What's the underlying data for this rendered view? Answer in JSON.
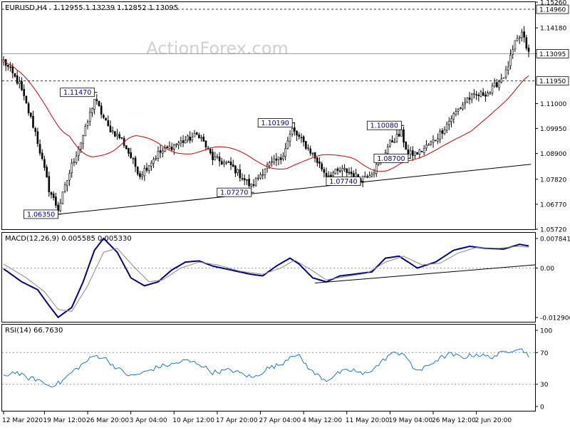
{
  "chart_data": [
    {
      "type": "candlestick",
      "title": "EURUSD,H4",
      "ohlc_header": "1.12955 1.13239 1.12852 1.13095",
      "watermark": "ActionForex.com",
      "ylim": [
        1.0572,
        1.1526
      ],
      "price_ticks": [
        "1.15260",
        "1.14180",
        "1.13095",
        "1.11000",
        "1.09950",
        "1.08900",
        "1.07820",
        "1.06770",
        "1.05720"
      ],
      "hlines": [
        {
          "value": 1.1496,
          "label": "1.14960",
          "style": "dashed",
          "boxed": true
        },
        {
          "value": 1.13095,
          "label": "1.13095",
          "style": "solid",
          "boxed": true
        },
        {
          "value": 1.1195,
          "label": "1.11950",
          "style": "dashed",
          "boxed": true
        }
      ],
      "annotations": [
        {
          "label": "1.11470",
          "index": 40,
          "value": 1.1147
        },
        {
          "label": "1.06350",
          "index": 24,
          "value": 1.0635
        },
        {
          "label": "1.10190",
          "index": 127,
          "value": 1.1019
        },
        {
          "label": "1.07270",
          "index": 109,
          "value": 1.0727
        },
        {
          "label": "1.07740",
          "index": 157,
          "value": 1.0774
        },
        {
          "label": "1.10080",
          "index": 175,
          "value": 1.1008
        },
        {
          "label": "1.08700",
          "index": 178,
          "value": 1.087
        }
      ],
      "trendline": {
        "from": {
          "index": 24,
          "value": 1.0635
        },
        "to": {
          "index": 232,
          "value": 1.0845
        }
      },
      "moving_average": {
        "color": "#cc0000"
      },
      "x_ticks": [
        {
          "index": 0,
          "label": "12 Mar 2020"
        },
        {
          "index": 18,
          "label": "19 Mar 12:00"
        },
        {
          "index": 37,
          "label": "26 Mar 20:00"
        },
        {
          "index": 56,
          "label": "3 Apr 04:00"
        },
        {
          "index": 75,
          "label": "10 Apr 12:00"
        },
        {
          "index": 94,
          "label": "17 Apr 20:00"
        },
        {
          "index": 113,
          "label": "27 Apr 04:00"
        },
        {
          "index": 132,
          "label": "4 May 12:00"
        },
        {
          "index": 151,
          "label": "11 May 20:00"
        },
        {
          "index": 170,
          "label": "19 May 04:00"
        },
        {
          "index": 189,
          "label": "26 May 12:00"
        },
        {
          "index": 208,
          "label": "2 Jun 20:00"
        }
      ],
      "candles": {
        "count": 232,
        "close_waypoints": [
          {
            "index": 0,
            "value": 1.128
          },
          {
            "index": 7,
            "value": 1.118
          },
          {
            "index": 14,
            "value": 1.098
          },
          {
            "index": 20,
            "value": 1.074
          },
          {
            "index": 24,
            "value": 1.0655
          },
          {
            "index": 30,
            "value": 1.084
          },
          {
            "index": 36,
            "value": 1.099
          },
          {
            "index": 40,
            "value": 1.112
          },
          {
            "index": 46,
            "value": 1.1
          },
          {
            "index": 52,
            "value": 1.095
          },
          {
            "index": 60,
            "value": 1.08
          },
          {
            "index": 68,
            "value": 1.089
          },
          {
            "index": 76,
            "value": 1.093
          },
          {
            "index": 86,
            "value": 1.097
          },
          {
            "index": 92,
            "value": 1.087
          },
          {
            "index": 100,
            "value": 1.084
          },
          {
            "index": 109,
            "value": 1.075
          },
          {
            "index": 115,
            "value": 1.083
          },
          {
            "index": 122,
            "value": 1.087
          },
          {
            "index": 127,
            "value": 1.099
          },
          {
            "index": 135,
            "value": 1.09
          },
          {
            "index": 142,
            "value": 1.08
          },
          {
            "index": 150,
            "value": 1.082
          },
          {
            "index": 157,
            "value": 1.0785
          },
          {
            "index": 163,
            "value": 1.082
          },
          {
            "index": 170,
            "value": 1.0935
          },
          {
            "index": 175,
            "value": 1.0975
          },
          {
            "index": 178,
            "value": 1.0885
          },
          {
            "index": 183,
            "value": 1.0895
          },
          {
            "index": 190,
            "value": 1.095
          },
          {
            "index": 197,
            "value": 1.104
          },
          {
            "index": 204,
            "value": 1.112
          },
          {
            "index": 214,
            "value": 1.115
          },
          {
            "index": 221,
            "value": 1.123
          },
          {
            "index": 225,
            "value": 1.135
          },
          {
            "index": 228,
            "value": 1.1395
          },
          {
            "index": 231,
            "value": 1.131
          }
        ]
      }
    },
    {
      "type": "line",
      "title": "MACD(12,26,9) 0.005585 0.005330",
      "ylim": [
        -0.012906,
        0.007841
      ],
      "ticks": [
        "0.007841",
        "0.00",
        "-0.012906"
      ],
      "series": [
        {
          "role": "macd",
          "color": "#000080",
          "waypoints": [
            {
              "index": 0,
              "value": -0.0002
            },
            {
              "index": 8,
              "value": -0.0035
            },
            {
              "index": 15,
              "value": -0.0055
            },
            {
              "index": 20,
              "value": -0.0095
            },
            {
              "index": 24,
              "value": -0.0125
            },
            {
              "index": 30,
              "value": -0.01
            },
            {
              "index": 35,
              "value": -0.0035
            },
            {
              "index": 40,
              "value": 0.0045
            },
            {
              "index": 44,
              "value": 0.0075
            },
            {
              "index": 50,
              "value": 0.004
            },
            {
              "index": 56,
              "value": -0.0025
            },
            {
              "index": 62,
              "value": -0.0045
            },
            {
              "index": 68,
              "value": -0.0035
            },
            {
              "index": 74,
              "value": -0.0005
            },
            {
              "index": 80,
              "value": 0.0015
            },
            {
              "index": 86,
              "value": 0.0018
            },
            {
              "index": 92,
              "value": 0.0005
            },
            {
              "index": 100,
              "value": -0.0005
            },
            {
              "index": 108,
              "value": -0.0015
            },
            {
              "index": 114,
              "value": -0.002
            },
            {
              "index": 120,
              "value": 0.0005
            },
            {
              "index": 126,
              "value": 0.0025
            },
            {
              "index": 130,
              "value": 0.001
            },
            {
              "index": 136,
              "value": -0.0025
            },
            {
              "index": 142,
              "value": -0.0035
            },
            {
              "index": 148,
              "value": -0.002
            },
            {
              "index": 155,
              "value": -0.0015
            },
            {
              "index": 162,
              "value": -0.001
            },
            {
              "index": 168,
              "value": 0.0025
            },
            {
              "index": 174,
              "value": 0.003
            },
            {
              "index": 178,
              "value": 0.0015
            },
            {
              "index": 182,
              "value": 0
            },
            {
              "index": 190,
              "value": 0.0015
            },
            {
              "index": 198,
              "value": 0.0045
            },
            {
              "index": 205,
              "value": 0.0055
            },
            {
              "index": 212,
              "value": 0.005
            },
            {
              "index": 220,
              "value": 0.0048
            },
            {
              "index": 227,
              "value": 0.006
            },
            {
              "index": 231,
              "value": 0.0056
            }
          ]
        },
        {
          "role": "signal",
          "color": "#888888",
          "waypoints": [
            {
              "index": 0,
              "value": 0.001
            },
            {
              "index": 10,
              "value": -0.0025
            },
            {
              "index": 18,
              "value": -0.006
            },
            {
              "index": 24,
              "value": -0.0105
            },
            {
              "index": 30,
              "value": -0.011
            },
            {
              "index": 37,
              "value": -0.0045
            },
            {
              "index": 44,
              "value": 0.004
            },
            {
              "index": 50,
              "value": 0.005
            },
            {
              "index": 57,
              "value": 0.0005
            },
            {
              "index": 64,
              "value": -0.0035
            },
            {
              "index": 70,
              "value": -0.003
            },
            {
              "index": 78,
              "value": 0
            },
            {
              "index": 86,
              "value": 0.0015
            },
            {
              "index": 94,
              "value": 0.0008
            },
            {
              "index": 104,
              "value": -0.0008
            },
            {
              "index": 114,
              "value": -0.0016
            },
            {
              "index": 122,
              "value": 0
            },
            {
              "index": 128,
              "value": 0.002
            },
            {
              "index": 134,
              "value": 0
            },
            {
              "index": 142,
              "value": -0.003
            },
            {
              "index": 150,
              "value": -0.0022
            },
            {
              "index": 160,
              "value": -0.0013
            },
            {
              "index": 168,
              "value": 0.0015
            },
            {
              "index": 176,
              "value": 0.003
            },
            {
              "index": 184,
              "value": 0.0008
            },
            {
              "index": 192,
              "value": 0.0012
            },
            {
              "index": 200,
              "value": 0.0038
            },
            {
              "index": 208,
              "value": 0.0052
            },
            {
              "index": 218,
              "value": 0.005
            },
            {
              "index": 226,
              "value": 0.0055
            },
            {
              "index": 231,
              "value": 0.0053
            }
          ]
        }
      ],
      "trendline": {
        "from": {
          "index": 137,
          "value": -0.0038
        },
        "to": {
          "index": 232,
          "value": 0.0008
        }
      }
    },
    {
      "type": "line",
      "title": "RSI(14) 66.7630",
      "ylim": [
        0,
        100
      ],
      "ticks": [
        "100",
        "70",
        "30",
        "0"
      ],
      "levels": [
        70,
        30
      ],
      "series": [
        {
          "role": "rsi",
          "color": "#1e78c8",
          "waypoints": [
            {
              "index": 0,
              "value": 40
            },
            {
              "index": 5,
              "value": 46
            },
            {
              "index": 10,
              "value": 38
            },
            {
              "index": 15,
              "value": 36
            },
            {
              "index": 20,
              "value": 28
            },
            {
              "index": 25,
              "value": 32
            },
            {
              "index": 30,
              "value": 45
            },
            {
              "index": 36,
              "value": 58
            },
            {
              "index": 40,
              "value": 66
            },
            {
              "index": 44,
              "value": 64
            },
            {
              "index": 50,
              "value": 50
            },
            {
              "index": 56,
              "value": 40
            },
            {
              "index": 62,
              "value": 45
            },
            {
              "index": 68,
              "value": 52
            },
            {
              "index": 74,
              "value": 55
            },
            {
              "index": 80,
              "value": 60
            },
            {
              "index": 86,
              "value": 56
            },
            {
              "index": 92,
              "value": 45
            },
            {
              "index": 100,
              "value": 48
            },
            {
              "index": 106,
              "value": 42
            },
            {
              "index": 110,
              "value": 38
            },
            {
              "index": 116,
              "value": 50
            },
            {
              "index": 122,
              "value": 55
            },
            {
              "index": 127,
              "value": 68
            },
            {
              "index": 130,
              "value": 65
            },
            {
              "index": 136,
              "value": 45
            },
            {
              "index": 142,
              "value": 35
            },
            {
              "index": 148,
              "value": 45
            },
            {
              "index": 154,
              "value": 48
            },
            {
              "index": 158,
              "value": 42
            },
            {
              "index": 164,
              "value": 52
            },
            {
              "index": 170,
              "value": 68
            },
            {
              "index": 176,
              "value": 70
            },
            {
              "index": 180,
              "value": 50
            },
            {
              "index": 184,
              "value": 48
            },
            {
              "index": 190,
              "value": 60
            },
            {
              "index": 196,
              "value": 68
            },
            {
              "index": 202,
              "value": 64
            },
            {
              "index": 208,
              "value": 68
            },
            {
              "index": 214,
              "value": 64
            },
            {
              "index": 220,
              "value": 70
            },
            {
              "index": 226,
              "value": 76
            },
            {
              "index": 229,
              "value": 72
            },
            {
              "index": 231,
              "value": 66.763
            }
          ]
        }
      ]
    }
  ]
}
